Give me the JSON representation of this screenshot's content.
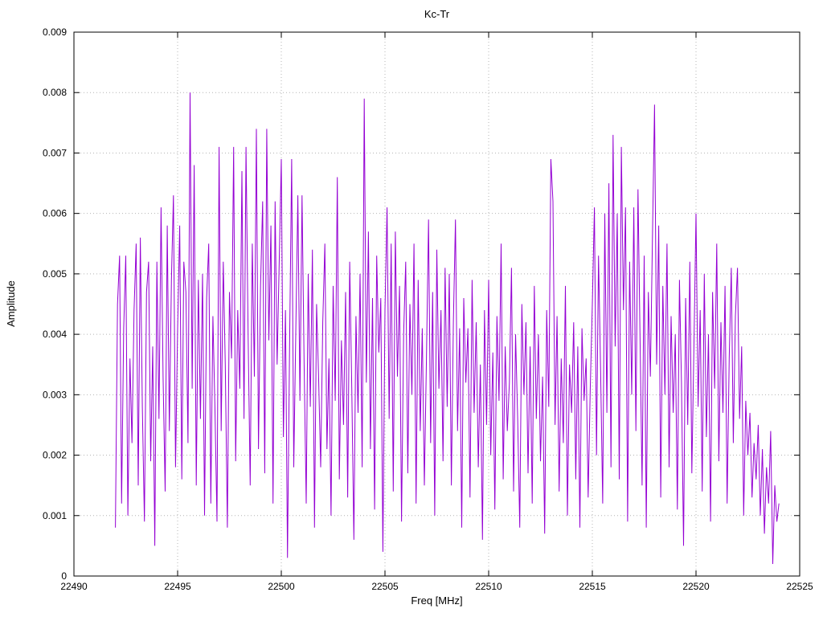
{
  "chart_data": {
    "type": "line",
    "title": "Kc-Tr",
    "xlabel": "Freq [MHz]",
    "ylabel": "Amplitude",
    "xlim": [
      22490,
      22525
    ],
    "ylim": [
      0,
      0.009
    ],
    "xticks": [
      22490,
      22495,
      22500,
      22505,
      22510,
      22515,
      22520,
      22525
    ],
    "xtick_labels": [
      "22490",
      "22495",
      "22500",
      "22505",
      "22510",
      "22515",
      "22520",
      "22525"
    ],
    "yticks": [
      0,
      0.001,
      0.002,
      0.003,
      0.004,
      0.005,
      0.006,
      0.007,
      0.008,
      0.009
    ],
    "ytick_labels": [
      "0",
      "0.001",
      "0.002",
      "0.003",
      "0.004",
      "0.005",
      "0.006",
      "0.007",
      "0.008",
      "0.009"
    ],
    "grid": true,
    "legend": "none",
    "line_color": "#9400d3",
    "grid_color": "#b4b4b4",
    "series": [
      {
        "name": "Kc-Tr",
        "x_start": 22492.0,
        "x_step": 0.1,
        "y_scale": 0.0001,
        "y": [
          8,
          45,
          53,
          12,
          41,
          53,
          10,
          36,
          22,
          44,
          55,
          15,
          56,
          28,
          9,
          47,
          52,
          19,
          38,
          5,
          52,
          26,
          61,
          33,
          14,
          58,
          24,
          49,
          63,
          18,
          41,
          58,
          16,
          52,
          47,
          22,
          80,
          31,
          68,
          15,
          49,
          26,
          50,
          10,
          46,
          55,
          12,
          43,
          28,
          9,
          71,
          24,
          52,
          35,
          8,
          47,
          36,
          71,
          19,
          44,
          31,
          67,
          26,
          71,
          40,
          15,
          55,
          33,
          74,
          21,
          48,
          62,
          17,
          74,
          39,
          58,
          12,
          62,
          35,
          52,
          69,
          23,
          44,
          3,
          38,
          69,
          18,
          41,
          63,
          29,
          63,
          35,
          12,
          50,
          28,
          54,
          8,
          45,
          33,
          18,
          42,
          55,
          21,
          36,
          10,
          48,
          29,
          66,
          16,
          39,
          25,
          47,
          13,
          52,
          31,
          6,
          43,
          27,
          50,
          18,
          79,
          32,
          57,
          21,
          46,
          11,
          53,
          37,
          46,
          4,
          44,
          61,
          26,
          55,
          14,
          57,
          33,
          48,
          9,
          40,
          52,
          17,
          45,
          30,
          55,
          12,
          49,
          24,
          41,
          15,
          36,
          59,
          22,
          47,
          10,
          54,
          31,
          44,
          19,
          51,
          28,
          50,
          15,
          42,
          59,
          24,
          41,
          8,
          46,
          32,
          41,
          13,
          49,
          27,
          42,
          18,
          35,
          6,
          44,
          25,
          49,
          20,
          37,
          11,
          43,
          29,
          55,
          16,
          38,
          24,
          32,
          51,
          14,
          40,
          26,
          8,
          45,
          30,
          42,
          17,
          38,
          12,
          48,
          26,
          40,
          19,
          33,
          7,
          44,
          28,
          69,
          62,
          25,
          43,
          14,
          36,
          22,
          48,
          10,
          35,
          27,
          42,
          16,
          38,
          8,
          41,
          29,
          36,
          13,
          31,
          45,
          61,
          20,
          53,
          34,
          12,
          60,
          27,
          65,
          18,
          73,
          38,
          60,
          16,
          71,
          44,
          61,
          9,
          52,
          30,
          61,
          24,
          64,
          40,
          15,
          53,
          8,
          47,
          33,
          56,
          78,
          35,
          58,
          13,
          48,
          30,
          55,
          18,
          43,
          27,
          40,
          11,
          49,
          32,
          5,
          46,
          25,
          52,
          17,
          38,
          60,
          28,
          44,
          14,
          50,
          23,
          40,
          9,
          47,
          31,
          55,
          19,
          42,
          27,
          48,
          12,
          36,
          51,
          22,
          43,
          51,
          26,
          38,
          10,
          29,
          20,
          27,
          13,
          22,
          16,
          25,
          10,
          21,
          7,
          18,
          12,
          24,
          2,
          15,
          9,
          12
        ]
      }
    ]
  }
}
